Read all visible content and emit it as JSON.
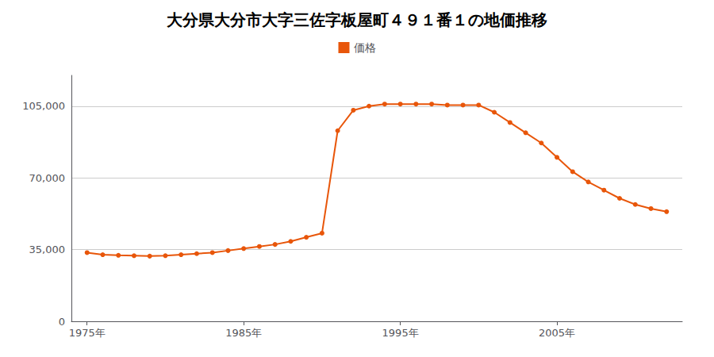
{
  "chart_data": {
    "type": "line",
    "title": "大分県大分市大字三佐字板屋町４９１番１の地価推移",
    "x": [
      1975,
      1976,
      1977,
      1978,
      1979,
      1980,
      1981,
      1982,
      1983,
      1984,
      1985,
      1986,
      1987,
      1988,
      1989,
      1990,
      1991,
      1992,
      1993,
      1994,
      1995,
      1996,
      1997,
      1998,
      1999,
      2000,
      2001,
      2002,
      2003,
      2004,
      2005,
      2006,
      2007,
      2008,
      2009,
      2010,
      2011,
      2012
    ],
    "series": [
      {
        "name": "価格",
        "color": "#e8560a",
        "marker": "circle",
        "values": [
          33500,
          32500,
          32200,
          32000,
          31800,
          32000,
          32500,
          33000,
          33500,
          34500,
          35500,
          36500,
          37500,
          39000,
          41000,
          43000,
          93000,
          103000,
          105000,
          106000,
          106000,
          106000,
          106000,
          105500,
          105500,
          105500,
          102000,
          97000,
          92000,
          87000,
          80000,
          73000,
          68000,
          64000,
          60000,
          57000,
          55000,
          53500
        ]
      }
    ],
    "xlim": [
      1974,
      2013
    ],
    "xticks": [
      {
        "value": 1975,
        "label": "1975年"
      },
      {
        "value": 1985,
        "label": "1985年"
      },
      {
        "value": 1995,
        "label": "1995年"
      },
      {
        "value": 2005,
        "label": "2005年"
      }
    ],
    "ylim": [
      0,
      120000
    ],
    "yticks": [
      0,
      {
        "value": 35000,
        "label": "35,000"
      },
      {
        "value": 70000,
        "label": "70,000"
      },
      {
        "value": 105000,
        "label": "105,000"
      }
    ],
    "grid": true,
    "legend": "top"
  }
}
